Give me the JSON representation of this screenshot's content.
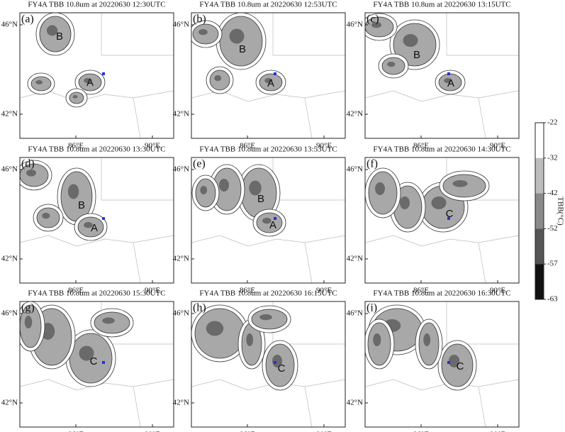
{
  "panels": [
    {
      "title": "FY4A TBB 10.8um at 20220630 12:30UTC",
      "label": "(a)",
      "annotations": [
        "B",
        "A"
      ]
    },
    {
      "title": "FY4A TBB 10.8um at 20220630 12:53UTC",
      "label": "(b)",
      "annotations": [
        "B",
        "A"
      ]
    },
    {
      "title": "FY4A TBB 10.8um at 20220630 13:15UTC",
      "label": "(c)",
      "annotations": [
        "B",
        "A"
      ]
    },
    {
      "title": "FY4A TBB 10.8um at 20220630 13:30UTC",
      "label": "(d)",
      "annotations": [
        "B",
        "A"
      ]
    },
    {
      "title": "FY4A TBB 10.8um at 20220630 13:53UTC",
      "label": "(e)",
      "annotations": [
        "B",
        "A"
      ]
    },
    {
      "title": "FY4A TBB 10.8um at 20220630 14:30UTC",
      "label": "(f)",
      "annotations": [
        "C"
      ]
    },
    {
      "title": "FY4A TBB 10.8um at 20220630 15:30UTC",
      "label": "(g)",
      "annotations": [
        "C"
      ]
    },
    {
      "title": "FY4A TBB 10.8um at 20220630 16:15UTC",
      "label": "(h)",
      "annotations": [
        "C"
      ]
    },
    {
      "title": "FY4A TBB 10.8um at 20220630 16:30UTC",
      "label": "(i)",
      "annotations": [
        "C"
      ]
    }
  ],
  "lat_labels": [
    "46°N",
    "42°N"
  ],
  "lon_labels": [
    "86°E",
    "90°E"
  ],
  "colorbar": {
    "label": "TBB(°C)",
    "ticks": [
      -22,
      -32,
      -42,
      -52,
      -57,
      -63
    ],
    "colors": [
      "#ffffff",
      "#bdbdbd",
      "#8a8a8a",
      "#555555",
      "#111111"
    ]
  }
}
